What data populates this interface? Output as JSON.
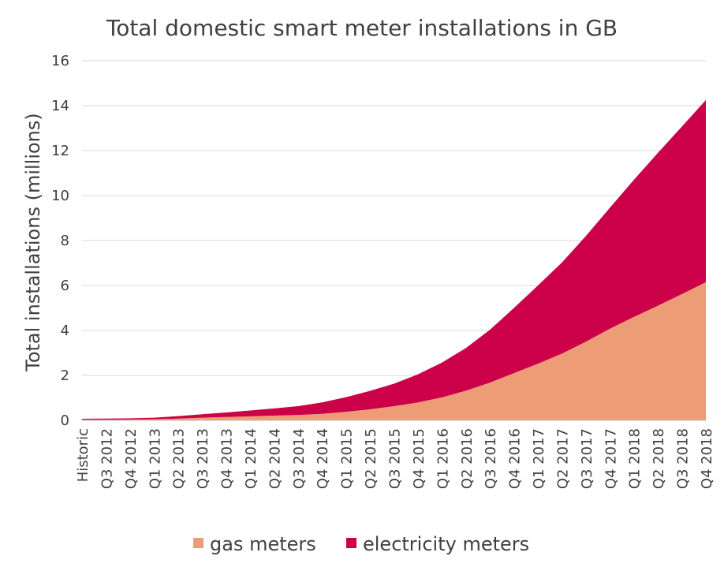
{
  "chart_data": {
    "type": "area",
    "stacked": true,
    "title": "Total domestic smart meter installations in GB",
    "xlabel": "",
    "ylabel": "Total installations (millions)",
    "ylim": [
      0,
      16
    ],
    "yticks": [
      "0",
      "2",
      "4",
      "6",
      "8",
      "10",
      "12",
      "14",
      "16"
    ],
    "grid": "horizontal",
    "legend_position": "bottom",
    "categories": [
      "Historic",
      "Q3 2012",
      "Q4 2012",
      "Q1 2013",
      "Q2 2013",
      "Q3 2013",
      "Q4 2013",
      "Q1 2014",
      "Q2 2014",
      "Q3 2014",
      "Q4 2014",
      "Q1 2015",
      "Q2 2015",
      "Q3 2015",
      "Q4 2015",
      "Q1 2016",
      "Q2 2016",
      "Q3 2016",
      "Q4 2016",
      "Q1 2017",
      "Q2 2017",
      "Q3 2017",
      "Q4 2017",
      "Q1 2018",
      "Q2 2018",
      "Q3 2018",
      "Q4 2018"
    ],
    "series": [
      {
        "name": "gas meters",
        "color": "#ed9d76",
        "values": [
          0.03,
          0.03,
          0.04,
          0.05,
          0.08,
          0.12,
          0.15,
          0.18,
          0.21,
          0.24,
          0.29,
          0.38,
          0.49,
          0.63,
          0.8,
          1.02,
          1.32,
          1.68,
          2.1,
          2.52,
          2.97,
          3.5,
          4.08,
          4.6,
          5.1,
          5.62,
          6.15
        ]
      },
      {
        "name": "electricity meters",
        "color": "#cc0049",
        "values": [
          0.04,
          0.05,
          0.05,
          0.07,
          0.11,
          0.15,
          0.2,
          0.26,
          0.32,
          0.39,
          0.51,
          0.65,
          0.82,
          1.0,
          1.25,
          1.55,
          1.9,
          2.35,
          2.9,
          3.48,
          4.05,
          4.7,
          5.38,
          6.1,
          6.8,
          7.45,
          8.1
        ]
      }
    ]
  }
}
